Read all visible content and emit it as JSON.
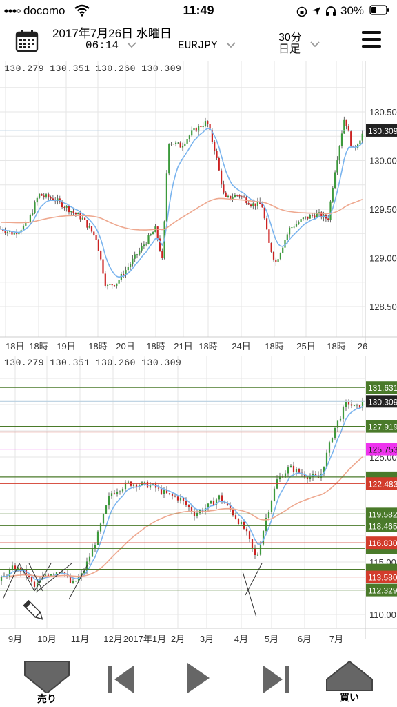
{
  "status_bar": {
    "carrier": "docomo",
    "time": "11:49",
    "battery": "30%"
  },
  "header": {
    "date": "2017年7月26日 水曜日",
    "time": "06:14",
    "symbol": "EURJPY",
    "timeframe_line1": "30分",
    "timeframe_line2": "日足"
  },
  "chart1": {
    "ohlc": "130.279 130.351 130.260 130.309",
    "price_labels": [
      "130.50",
      "130.00",
      "129.50",
      "129.00",
      "128.50"
    ],
    "current_price": "130.309",
    "time_labels": [
      "18日",
      "18時",
      "19日",
      "18時",
      "20日",
      "18時",
      "21日",
      "18時",
      "24日",
      "18時",
      "25日",
      "18時",
      "26"
    ]
  },
  "chart2": {
    "ohlc": "130.279 130.351 130.260 130.309",
    "price_labels": [
      "115.00",
      "110.00",
      "125.00"
    ],
    "line_labels": [
      "131.631",
      "130.309",
      "127.919",
      "125.753",
      "122.483",
      "119.582",
      "118.465",
      "116.830",
      "113.580",
      "112.329"
    ],
    "time_labels": [
      "9月",
      "10月",
      "11月",
      "12月",
      "2017年1月",
      "2月",
      "3月",
      "4月",
      "5月",
      "6月",
      "7月"
    ]
  },
  "bottom_bar": {
    "sell_label": "売り",
    "buy_label": "買い"
  },
  "colors": {
    "grid": "#e6e6e6",
    "ema_fast": "#7ab4ee",
    "ema_slow": "#eea88f",
    "up": "#3c9a3c",
    "down": "#cc2222",
    "hline_green": "#4a7a2a",
    "hline_red": "#d23c2c",
    "hline_magenta": "#ee33ee"
  }
}
